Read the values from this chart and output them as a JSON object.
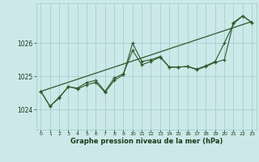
{
  "title": "Graphe pression niveau de la mer (hPa)",
  "bg_color": "#cce8e8",
  "grid_color": "#99cccc",
  "line_color": "#2d5a2d",
  "label_color": "#1a3a1a",
  "xlim": [
    -0.5,
    23.5
  ],
  "ylim": [
    1023.4,
    1027.2
  ],
  "yticks": [
    1024,
    1025,
    1026
  ],
  "xticks": [
    0,
    1,
    2,
    3,
    4,
    5,
    6,
    7,
    8,
    9,
    10,
    11,
    12,
    13,
    14,
    15,
    16,
    17,
    18,
    19,
    20,
    21,
    22,
    23
  ],
  "series1_x": [
    0,
    1,
    2,
    3,
    4,
    5,
    6,
    7,
    8,
    9,
    10,
    11,
    12,
    13,
    14,
    15,
    16,
    17,
    18,
    19,
    20,
    21,
    22,
    23
  ],
  "series1_y": [
    1024.55,
    1024.1,
    1024.35,
    1024.7,
    1024.62,
    1024.75,
    1024.82,
    1024.52,
    1024.88,
    1025.05,
    1026.0,
    1025.45,
    1025.5,
    1025.6,
    1025.28,
    1025.28,
    1025.3,
    1025.22,
    1025.32,
    1025.45,
    1026.0,
    1026.58,
    1026.82,
    1026.62
  ],
  "series2_x": [
    0,
    1,
    2,
    3,
    4,
    5,
    6,
    7,
    8,
    9,
    10,
    11,
    12,
    13,
    14,
    15,
    16,
    17,
    18,
    19,
    20,
    21,
    22,
    23
  ],
  "series2_y": [
    1024.55,
    1024.1,
    1024.38,
    1024.68,
    1024.65,
    1024.82,
    1024.88,
    1024.55,
    1024.95,
    1025.08,
    1025.78,
    1025.35,
    1025.45,
    1025.58,
    1025.28,
    1025.28,
    1025.3,
    1025.2,
    1025.3,
    1025.42,
    1025.5,
    1026.62,
    1026.82,
    1026.62
  ],
  "trend_x": [
    0,
    23
  ],
  "trend_y": [
    1024.55,
    1026.65
  ]
}
